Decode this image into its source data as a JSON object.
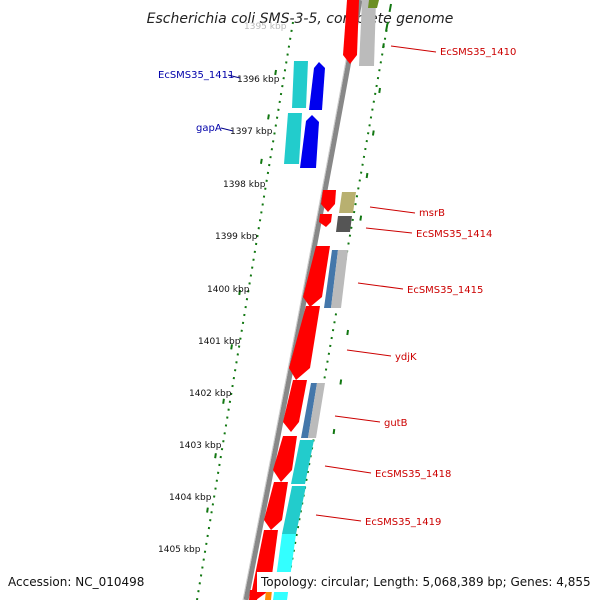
{
  "title": "Escherichia coli SMS-3-5, complete genome",
  "ticks": [
    "1395 kbp",
    "1396 kbp",
    "1397 kbp",
    "1398 kbp",
    "1399 kbp",
    "1400 kbp",
    "1401 kbp",
    "1402 kbp",
    "1403 kbp",
    "1404 kbp",
    "1405 kbp"
  ],
  "genes_left": [
    "EcSMS35_1411",
    "gapA"
  ],
  "genes_right": [
    "EcSMS35_1410",
    "msrB",
    "EcSMS35_1414",
    "EcSMS35_1415",
    "ydjK",
    "gutB",
    "EcSMS35_1418",
    "EcSMS35_1419"
  ],
  "footer": {
    "accession": "Accession: NC_010498",
    "topology": "Topology: circular; Length: 5,068,389 bp; Genes: 4,855"
  },
  "colors": {
    "backbone": "#888888",
    "cds_red": "#ff0000",
    "cds_blue": "#0000ee",
    "cog_cyan": "#22cccc",
    "cog_olive": "#b8b070",
    "cog_steel": "#4477aa",
    "cog_gray": "#bbbbbb",
    "gc_dots": "#117711",
    "left_label": "#0000aa",
    "right_label": "#cc0000"
  }
}
